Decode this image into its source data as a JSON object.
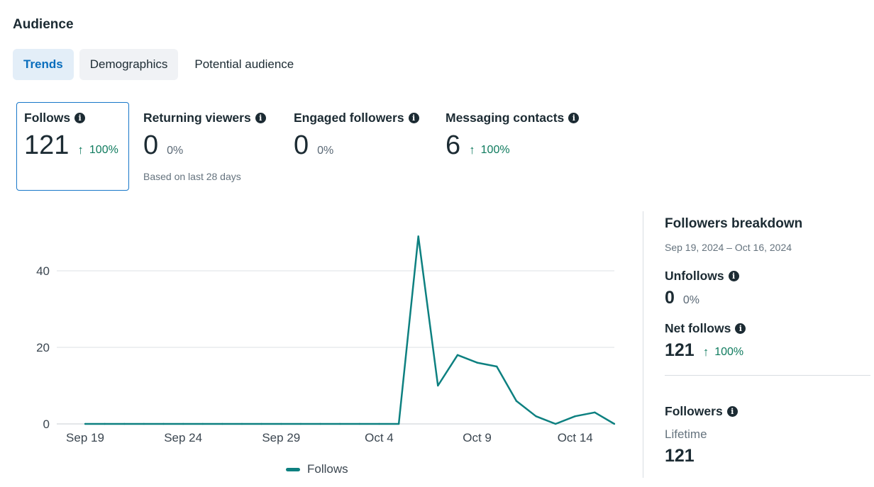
{
  "page": {
    "title": "Audience"
  },
  "tabs": [
    {
      "label": "Trends",
      "active": true
    },
    {
      "label": "Demographics",
      "active": false
    },
    {
      "label": "Potential audience",
      "active": false
    }
  ],
  "metrics": [
    {
      "label": "Follows",
      "value": "121",
      "change": "100%",
      "trend": "up",
      "selected": true
    },
    {
      "label": "Returning viewers",
      "value": "0",
      "change": "0%",
      "trend": "flat",
      "note": "Based on last 28 days"
    },
    {
      "label": "Engaged followers",
      "value": "0",
      "change": "0%",
      "trend": "flat"
    },
    {
      "label": "Messaging contacts",
      "value": "6",
      "change": "100%",
      "trend": "up"
    }
  ],
  "chart_data": {
    "type": "line",
    "x_ticks": [
      "Sep 19",
      "Sep 24",
      "Sep 29",
      "Oct 4",
      "Oct 9",
      "Oct 14"
    ],
    "y_ticks": [
      0,
      20,
      40
    ],
    "ylim": [
      0,
      50
    ],
    "grid": true,
    "x": [
      "Sep 19",
      "Sep 20",
      "Sep 21",
      "Sep 22",
      "Sep 23",
      "Sep 24",
      "Sep 25",
      "Sep 26",
      "Sep 27",
      "Sep 28",
      "Sep 29",
      "Sep 30",
      "Oct 1",
      "Oct 2",
      "Oct 3",
      "Oct 4",
      "Oct 5",
      "Oct 6",
      "Oct 7",
      "Oct 8",
      "Oct 9",
      "Oct 10",
      "Oct 11",
      "Oct 12",
      "Oct 13",
      "Oct 14",
      "Oct 15",
      "Oct 16"
    ],
    "series": [
      {
        "name": "Follows",
        "color": "#0d8080",
        "values": [
          0,
          0,
          0,
          0,
          0,
          0,
          0,
          0,
          0,
          0,
          0,
          0,
          0,
          0,
          0,
          0,
          0,
          49,
          10,
          18,
          16,
          15,
          6,
          2,
          0,
          2,
          3,
          0
        ]
      }
    ],
    "legend": "bottom"
  },
  "breakdown": {
    "title": "Followers breakdown",
    "date_range": "Sep 19, 2024 – Oct 16, 2024",
    "unfollows": {
      "label": "Unfollows",
      "value": "0",
      "change": "0%"
    },
    "net_follows": {
      "label": "Net follows",
      "value": "121",
      "change": "100%"
    },
    "followers": {
      "label": "Followers",
      "sublabel": "Lifetime",
      "value": "121"
    }
  },
  "icons": {
    "info": "info-icon",
    "trend_up": "arrow-up-icon"
  },
  "colors": {
    "accent": "#1877c9",
    "line": "#0d8080",
    "positive": "#0f7b5e"
  }
}
